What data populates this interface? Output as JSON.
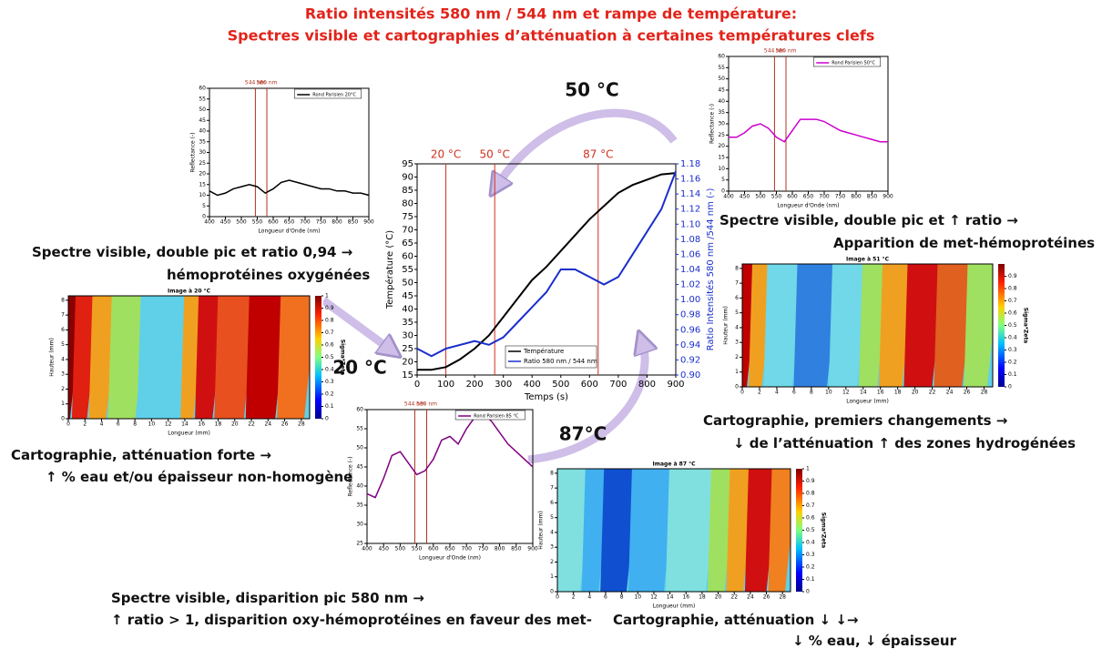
{
  "title": [
    "Ratio intensités 580 nm / 544 nm et rampe de température:",
    "Spectres visible et cartographies d’atténuation à certaines températures clefs"
  ],
  "temperature_labels": [
    "50 °C",
    "20 °C",
    "87°C"
  ],
  "captions": [
    "Spectre visible, double pic et ratio 0,94 →",
    "hémoprotéines oxygénées",
    "Spectre visible, double pic et ↑ ratio →",
    "Apparition de met-hémoprotéines",
    "Cartographie, premiers changements →",
    "↓ de l’atténuation ↑ des zones hydrogénées",
    "Cartographie, atténuation forte →",
    "↑ % eau et/ou épaisseur non-homogène",
    "Spectre visible, disparition pic 580 nm →",
    "↑ ratio > 1, disparition oxy-hémoprotéines en faveur des met-",
    "Cartographie, atténuation ↓ ↓→",
    "↓ % eau, ↓ épaisseur"
  ],
  "chart_data": [
    {
      "type": "line",
      "xlabel": "Temps (s)",
      "ylabel": "Température (°C)",
      "y2label": "Ratio Intensités 580 nm /544 nm (-)",
      "x": [
        0,
        50,
        100,
        150,
        200,
        250,
        300,
        350,
        400,
        450,
        500,
        550,
        600,
        650,
        700,
        750,
        800,
        850,
        900
      ],
      "xlim": [
        0,
        900
      ],
      "xticks": [
        0,
        100,
        200,
        300,
        400,
        500,
        600,
        700,
        800,
        900
      ],
      "ylim": [
        15,
        95
      ],
      "yticks": [
        15,
        20,
        25,
        30,
        35,
        40,
        45,
        50,
        55,
        60,
        65,
        70,
        75,
        80,
        85,
        90,
        95
      ],
      "y2lim": [
        0.9,
        1.18
      ],
      "y2ticks": [
        {
          "value": 0.9,
          "label": "0.90"
        },
        {
          "value": 0.92,
          "label": "0.92"
        },
        {
          "value": 0.94,
          "label": "0.94"
        },
        {
          "value": 0.96,
          "label": "0.96"
        },
        {
          "value": 0.98,
          "label": "0.98"
        },
        {
          "value": 1.0,
          "label": "1.00"
        },
        {
          "value": 1.02,
          "label": "1.02"
        },
        {
          "value": 1.04,
          "label": "1.04"
        },
        {
          "value": 1.06,
          "label": "1.06"
        },
        {
          "value": 1.08,
          "label": "1.08"
        },
        {
          "value": 1.1,
          "label": "1.10"
        },
        {
          "value": 1.12,
          "label": "1.12"
        },
        {
          "value": 1.14,
          "label": "1.14"
        },
        {
          "value": 1.16,
          "label": "1.16"
        },
        {
          "value": 1.18,
          "label": "1.18"
        }
      ],
      "vlines": [
        {
          "x": 100,
          "label": "20 °C"
        },
        {
          "x": 270,
          "label": "50 °C"
        },
        {
          "x": 630,
          "label": "87 °C"
        }
      ],
      "vline_color": "#d03020",
      "series": [
        {
          "name": "Température",
          "color": "#000000",
          "values": [
            17,
            17,
            18,
            21,
            25,
            30,
            37,
            44,
            51,
            56,
            62,
            68,
            74,
            79,
            84,
            87,
            89,
            91,
            91.5
          ]
        },
        {
          "name": "Ratio 580 nm / 544 nm",
          "color": "#1a2ecc",
          "axis": "y2",
          "values": [
            0.935,
            0.925,
            0.935,
            0.94,
            0.945,
            0.94,
            0.95,
            0.97,
            0.99,
            1.01,
            1.04,
            1.04,
            1.03,
            1.02,
            1.03,
            1.06,
            1.09,
            1.12,
            1.17
          ]
        }
      ]
    },
    {
      "type": "line",
      "xlabel": "Longueur d'Onde (nm)",
      "ylabel": "Reflectance (-)",
      "x": [
        400,
        425,
        450,
        475,
        500,
        525,
        550,
        575,
        600,
        625,
        650,
        675,
        700,
        725,
        750,
        775,
        800,
        825,
        850,
        875,
        900
      ],
      "xlim": [
        400,
        900
      ],
      "xticks": [
        400,
        450,
        500,
        550,
        600,
        650,
        700,
        750,
        800,
        850,
        900
      ],
      "ylim": [
        0,
        60
      ],
      "yticks": [
        0,
        5,
        10,
        15,
        20,
        25,
        30,
        35,
        40,
        45,
        50,
        55,
        60
      ],
      "vlines": [
        {
          "x": 544,
          "label": "544 nm"
        },
        {
          "x": 580,
          "label": "580 nm"
        }
      ],
      "vline_color": "#b03020",
      "series": [
        {
          "name": "Rond Parisien 20°C",
          "color": "#000000",
          "values": [
            12,
            10,
            11,
            13,
            14,
            15,
            14,
            11,
            13,
            16,
            17,
            16,
            15,
            14,
            13,
            13,
            12,
            12,
            11,
            11,
            10
          ]
        }
      ]
    },
    {
      "type": "line",
      "xlabel": "Longueur d'Onde (nm)",
      "ylabel": "Reflectance (-)",
      "x": [
        400,
        425,
        450,
        475,
        500,
        525,
        550,
        575,
        600,
        625,
        650,
        675,
        700,
        725,
        750,
        775,
        800,
        825,
        850,
        875,
        900
      ],
      "xlim": [
        400,
        900
      ],
      "xticks": [
        400,
        450,
        500,
        550,
        600,
        650,
        700,
        750,
        800,
        850,
        900
      ],
      "ylim": [
        0,
        60
      ],
      "yticks": [
        0,
        5,
        10,
        15,
        20,
        25,
        30,
        35,
        40,
        45,
        50,
        55,
        60
      ],
      "vlines": [
        {
          "x": 544,
          "label": "544 nm"
        },
        {
          "x": 580,
          "label": "580 nm"
        }
      ],
      "vline_color": "#b03020",
      "series": [
        {
          "name": "Rond Parisien 50°C",
          "color": "#cc00cc",
          "values": [
            24,
            24,
            26,
            29,
            30,
            28,
            24,
            22,
            27,
            32,
            32,
            32,
            31,
            29,
            27,
            26,
            25,
            24,
            23,
            22,
            22
          ]
        }
      ]
    },
    {
      "type": "line",
      "xlabel": "Longueur d'Onde (nm)",
      "ylabel": "Reflectance (-)",
      "x": [
        400,
        425,
        450,
        475,
        500,
        525,
        550,
        575,
        600,
        625,
        650,
        675,
        700,
        725,
        750,
        775,
        800,
        825,
        850,
        875,
        900
      ],
      "xlim": [
        400,
        900
      ],
      "xticks": [
        400,
        450,
        500,
        550,
        600,
        650,
        700,
        750,
        800,
        850,
        900
      ],
      "ylim": [
        25,
        60
      ],
      "yticks": [
        25,
        30,
        35,
        40,
        45,
        50,
        55,
        60
      ],
      "vlines": [
        {
          "x": 544,
          "label": "544 nm"
        },
        {
          "x": 580,
          "label": "580 nm"
        }
      ],
      "vline_color": "#b03020",
      "series": [
        {
          "name": "Rond Parisien 85 °C",
          "color": "#800080",
          "values": [
            38,
            37,
            42,
            48,
            49,
            46,
            43,
            44,
            47,
            52,
            53,
            51,
            55,
            58,
            59,
            57,
            54,
            51,
            49,
            47,
            45
          ]
        }
      ]
    },
    {
      "type": "heatmap",
      "title": "Image à 20 °C",
      "xlabel": "Longueur (mm)",
      "ylabel": "Hauteur (mm)",
      "clabel": "Sigma*Zeta",
      "xlim": [
        0,
        29
      ],
      "xticks": [
        0,
        2,
        4,
        6,
        8,
        10,
        12,
        14,
        16,
        18,
        20,
        22,
        24,
        26,
        28
      ],
      "ylim": [
        0,
        8.3
      ],
      "yticks": [
        0,
        1,
        2,
        3,
        4,
        5,
        6,
        7,
        8
      ],
      "clim": [
        0,
        1
      ],
      "cticks": [
        0,
        0.1,
        0.2,
        0.3,
        0.4,
        0.5,
        0.6,
        0.7,
        0.8,
        0.9,
        1
      ]
    },
    {
      "type": "heatmap",
      "title": "Image à 51 °C",
      "xlabel": "Longueur (mm)",
      "ylabel": "Hauteur (mm)",
      "clabel": "Sigma*Zeta",
      "xlim": [
        0,
        29
      ],
      "xticks": [
        0,
        2,
        4,
        6,
        8,
        10,
        12,
        14,
        16,
        18,
        20,
        22,
        24,
        26,
        28
      ],
      "ylim": [
        0,
        8.3
      ],
      "yticks": [
        0,
        1,
        2,
        3,
        4,
        5,
        6,
        7,
        8
      ],
      "clim": [
        0,
        1
      ],
      "cticks": [
        0,
        0.1,
        0.2,
        0.3,
        0.4,
        0.5,
        0.6,
        0.7,
        0.8,
        0.9
      ]
    },
    {
      "type": "heatmap",
      "title": "Image à 87 °C",
      "xlabel": "Longueur (mm)",
      "ylabel": "Hauteur (mm)",
      "clabel": "Sigma*Zeta",
      "xlim": [
        0,
        29
      ],
      "xticks": [
        0,
        2,
        4,
        6,
        8,
        10,
        12,
        14,
        16,
        18,
        20,
        22,
        24,
        26,
        28
      ],
      "ylim": [
        0,
        8.3
      ],
      "yticks": [
        0,
        1,
        2,
        3,
        4,
        5,
        6,
        7,
        8
      ],
      "clim": [
        0,
        1
      ],
      "cticks": [
        0,
        0.1,
        0.2,
        0.3,
        0.4,
        0.5,
        0.6,
        0.7,
        0.8,
        0.9,
        1
      ]
    }
  ]
}
